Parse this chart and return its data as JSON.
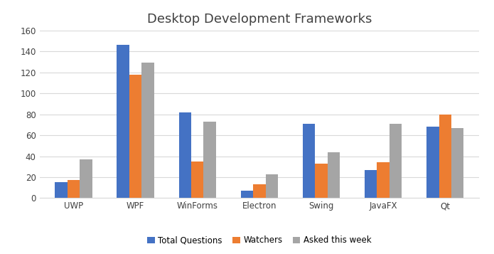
{
  "title": "Desktop Development Frameworks",
  "categories": [
    "UWP",
    "WPF",
    "WinForms",
    "Electron",
    "Swing",
    "JavaFX",
    "Qt"
  ],
  "series": {
    "Total Questions": [
      15,
      146,
      82,
      7,
      71,
      27,
      68
    ],
    "Watchers": [
      17,
      118,
      35,
      13,
      33,
      34,
      80
    ],
    "Asked this week": [
      37,
      129,
      73,
      23,
      44,
      71,
      67
    ]
  },
  "bar_colors": {
    "Total Questions": "#4472C4",
    "Watchers": "#ED7D31",
    "Asked this week": "#A5A5A5"
  },
  "ylim": [
    0,
    160
  ],
  "yticks": [
    0,
    20,
    40,
    60,
    80,
    100,
    120,
    140,
    160
  ],
  "background_color": "#FFFFFF",
  "grid_color": "#D9D9D9",
  "bar_width": 0.2,
  "title_fontsize": 13,
  "tick_fontsize": 8.5,
  "legend_fontsize": 8.5,
  "title_color": "#404040",
  "spine_color": "#D9D9D9"
}
